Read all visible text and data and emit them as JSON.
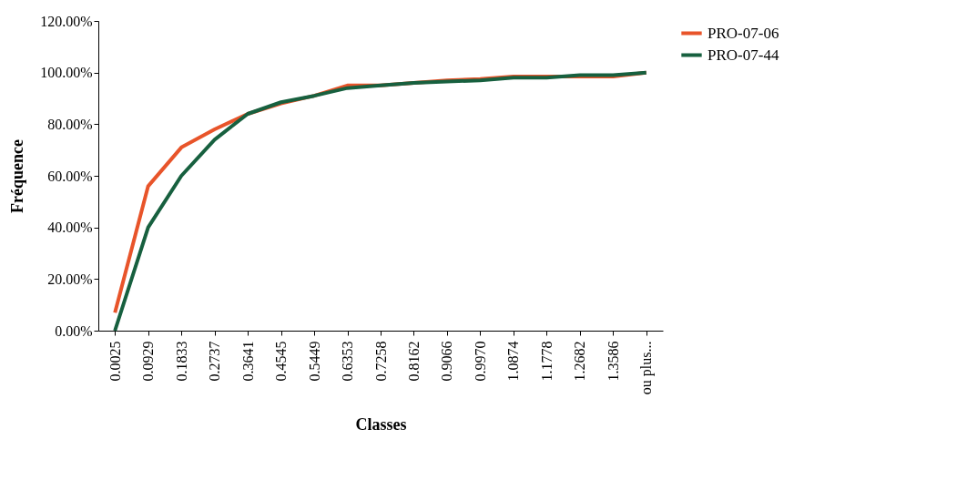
{
  "chart_data": {
    "type": "line",
    "xlabel": "Classes",
    "ylabel": "Fréquence",
    "categories": [
      "0.0025",
      "0.0929",
      "0.1833",
      "0.2737",
      "0.3641",
      "0.4545",
      "0.5449",
      "0.6353",
      "0.7258",
      "0.8162",
      "0.9066",
      "0.9970",
      "1.0874",
      "1.1778",
      "1.2682",
      "1.3586",
      "ou plus..."
    ],
    "series": [
      {
        "name": "PRO-07-06",
        "color": "#e8542a",
        "values": [
          7,
          56,
          71,
          78,
          84,
          88,
          91,
          95,
          95,
          96,
          97,
          97.5,
          98.5,
          98.5,
          98.5,
          98.5,
          100
        ]
      },
      {
        "name": "PRO-07-44",
        "color": "#17603f",
        "values": [
          0,
          40,
          60,
          74,
          84,
          88.5,
          91,
          94,
          95,
          96,
          96.5,
          97,
          98,
          98,
          99,
          99,
          100
        ]
      }
    ],
    "ylim": [
      0,
      120
    ],
    "yticks": [
      {
        "value": 0,
        "label": "0.00%"
      },
      {
        "value": 20,
        "label": "20.00%"
      },
      {
        "value": 40,
        "label": "40.00%"
      },
      {
        "value": 60,
        "label": "60.00%"
      },
      {
        "value": 80,
        "label": "80.00%"
      },
      {
        "value": 100,
        "label": "100.00%"
      },
      {
        "value": 120,
        "label": "120.00%"
      }
    ],
    "grid": false,
    "legend": "right",
    "marker": "none",
    "line_style": "solid"
  }
}
